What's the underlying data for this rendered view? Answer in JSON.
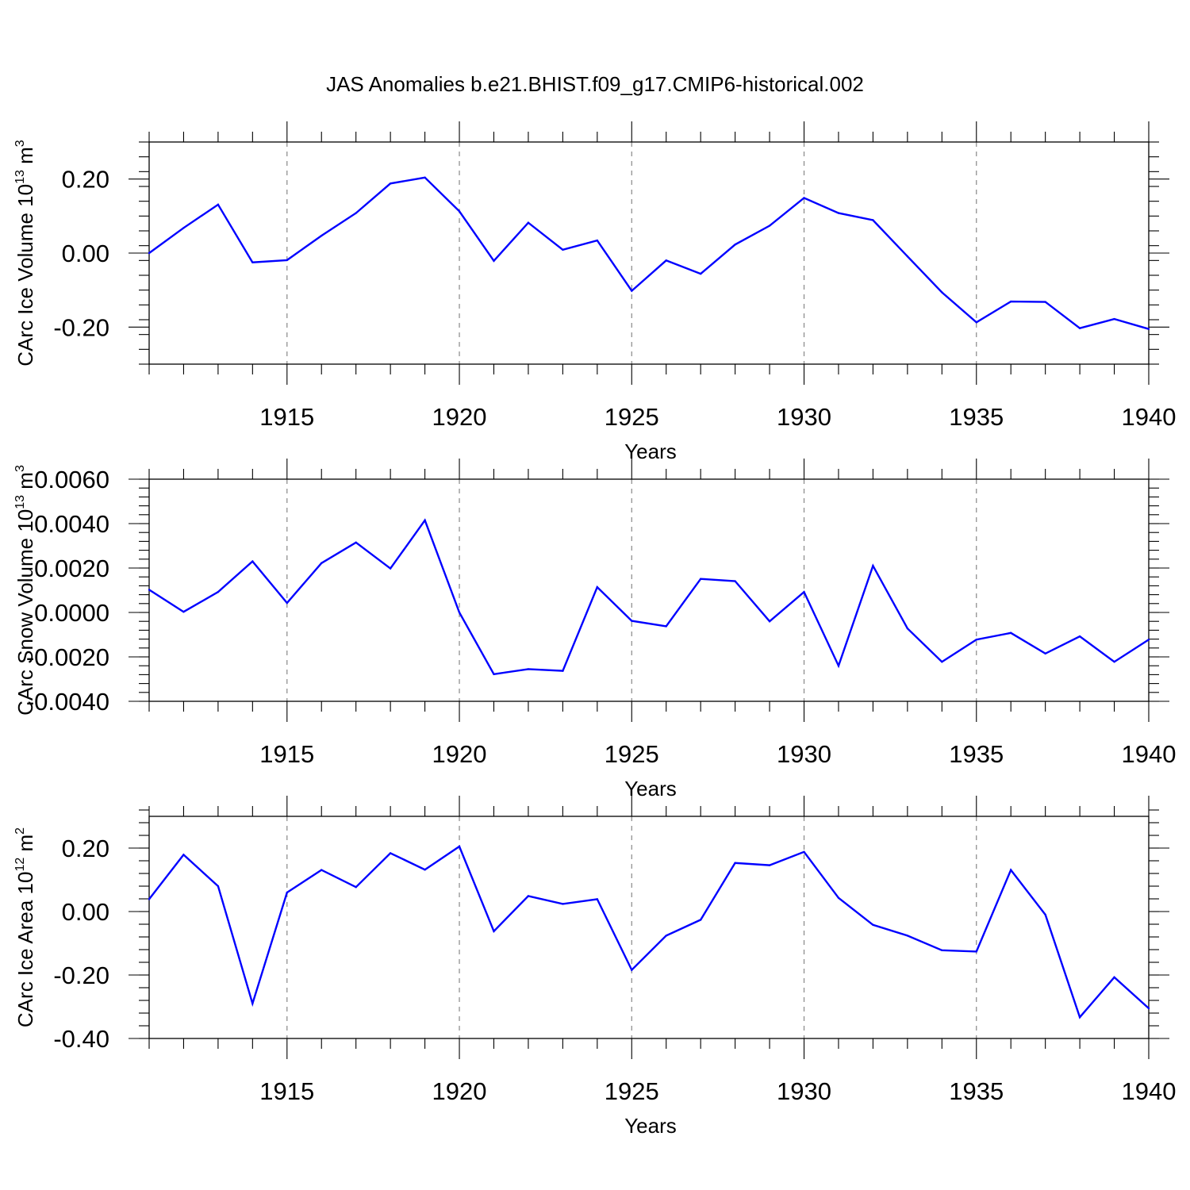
{
  "title": "JAS Anomalies b.e21.BHIST.f09_g17.CMIP6-historical.002",
  "colors": {
    "line": "#0000ff",
    "axis": "#000000",
    "grid": "#888888"
  },
  "chart_data": [
    {
      "type": "line",
      "ylabel_main": "CArc Ice Volume 10",
      "ylabel_exp": "13",
      "ylabel_unit": " m",
      "ylabel_unit_exp": "3",
      "xlabel": "Years",
      "xlim": [
        1911,
        1940
      ],
      "ylim": [
        -0.3,
        0.3
      ],
      "yticks": [
        -0.2,
        0.0,
        0.2
      ],
      "ytick_labels": [
        "-0.20",
        "0.00",
        "0.20"
      ],
      "xticks": [
        1915,
        1920,
        1925,
        1930,
        1935,
        1940
      ],
      "xtick_labels": [
        "1915",
        "1920",
        "1925",
        "1930",
        "1935",
        "1940"
      ],
      "grid_x": [
        1915,
        1920,
        1925,
        1930,
        1935
      ],
      "x": [
        1911,
        1912,
        1913,
        1914,
        1915,
        1916,
        1917,
        1918,
        1919,
        1920,
        1921,
        1922,
        1923,
        1924,
        1925,
        1926,
        1927,
        1928,
        1929,
        1930,
        1931,
        1932,
        1933,
        1934,
        1935,
        1936,
        1937,
        1938,
        1939,
        1940
      ],
      "values": [
        0.0,
        0.068,
        0.131,
        -0.025,
        -0.019,
        0.047,
        0.108,
        0.188,
        0.204,
        0.113,
        -0.021,
        0.082,
        0.009,
        0.034,
        -0.102,
        -0.02,
        -0.056,
        0.023,
        0.074,
        0.149,
        0.108,
        0.089,
        -0.009,
        -0.106,
        -0.187,
        -0.131,
        -0.132,
        -0.203,
        -0.178,
        -0.205
      ]
    },
    {
      "type": "line",
      "ylabel_main": "CArc Snow Volume 10",
      "ylabel_exp": "13",
      "ylabel_unit": " m",
      "ylabel_unit_exp": "3",
      "xlabel": "Years",
      "xlim": [
        1911,
        1940
      ],
      "ylim": [
        -0.004,
        0.006
      ],
      "yticks": [
        -0.004,
        -0.002,
        0.0,
        0.002,
        0.004,
        0.006
      ],
      "ytick_labels": [
        "-0.0040",
        "-0.0020",
        "0.0000",
        "0.0020",
        "0.0040",
        "0.0060"
      ],
      "xticks": [
        1915,
        1920,
        1925,
        1930,
        1935,
        1940
      ],
      "xtick_labels": [
        "1915",
        "1920",
        "1925",
        "1930",
        "1935",
        "1940"
      ],
      "grid_x": [
        1915,
        1920,
        1925,
        1930,
        1935
      ],
      "x": [
        1911,
        1912,
        1913,
        1914,
        1915,
        1916,
        1917,
        1918,
        1919,
        1920,
        1921,
        1922,
        1923,
        1924,
        1925,
        1926,
        1927,
        1928,
        1929,
        1930,
        1931,
        1932,
        1933,
        1934,
        1935,
        1936,
        1937,
        1938,
        1939,
        1940
      ],
      "values": [
        0.00102,
        3e-05,
        0.00092,
        0.0023,
        0.00043,
        0.00222,
        0.00315,
        0.00198,
        0.00415,
        0.0,
        -0.00278,
        -0.00255,
        -0.00263,
        0.00114,
        -0.00038,
        -0.00062,
        0.00151,
        0.00141,
        -0.0004,
        0.00092,
        -0.0024,
        0.0021,
        -0.00072,
        -0.00222,
        -0.00122,
        -0.00092,
        -0.00185,
        -0.00108,
        -0.00222,
        -0.00122
      ]
    },
    {
      "type": "line",
      "ylabel_main": "CArc Ice Area 10",
      "ylabel_exp": "12",
      "ylabel_unit": " m",
      "ylabel_unit_exp": "2",
      "xlabel": "Years",
      "xlim": [
        1911,
        1940
      ],
      "ylim": [
        -0.4,
        0.3
      ],
      "yticks": [
        -0.4,
        -0.2,
        0.0,
        0.2
      ],
      "ytick_labels": [
        "-0.40",
        "-0.20",
        "0.00",
        "0.20"
      ],
      "xticks": [
        1915,
        1920,
        1925,
        1930,
        1935,
        1940
      ],
      "xtick_labels": [
        "1915",
        "1920",
        "1925",
        "1930",
        "1935",
        "1940"
      ],
      "grid_x": [
        1915,
        1920,
        1925,
        1930,
        1935
      ],
      "x": [
        1911,
        1912,
        1913,
        1914,
        1915,
        1916,
        1917,
        1918,
        1919,
        1920,
        1921,
        1922,
        1923,
        1924,
        1925,
        1926,
        1927,
        1928,
        1929,
        1930,
        1931,
        1932,
        1933,
        1934,
        1935,
        1936,
        1937,
        1938,
        1939,
        1940
      ],
      "values": [
        0.039,
        0.179,
        0.08,
        -0.29,
        0.06,
        0.131,
        0.077,
        0.184,
        0.132,
        0.205,
        -0.062,
        0.049,
        0.024,
        0.039,
        -0.184,
        -0.076,
        -0.026,
        0.153,
        0.146,
        0.188,
        0.043,
        -0.042,
        -0.076,
        -0.122,
        -0.126,
        0.131,
        -0.01,
        -0.333,
        -0.207,
        -0.305
      ]
    }
  ]
}
